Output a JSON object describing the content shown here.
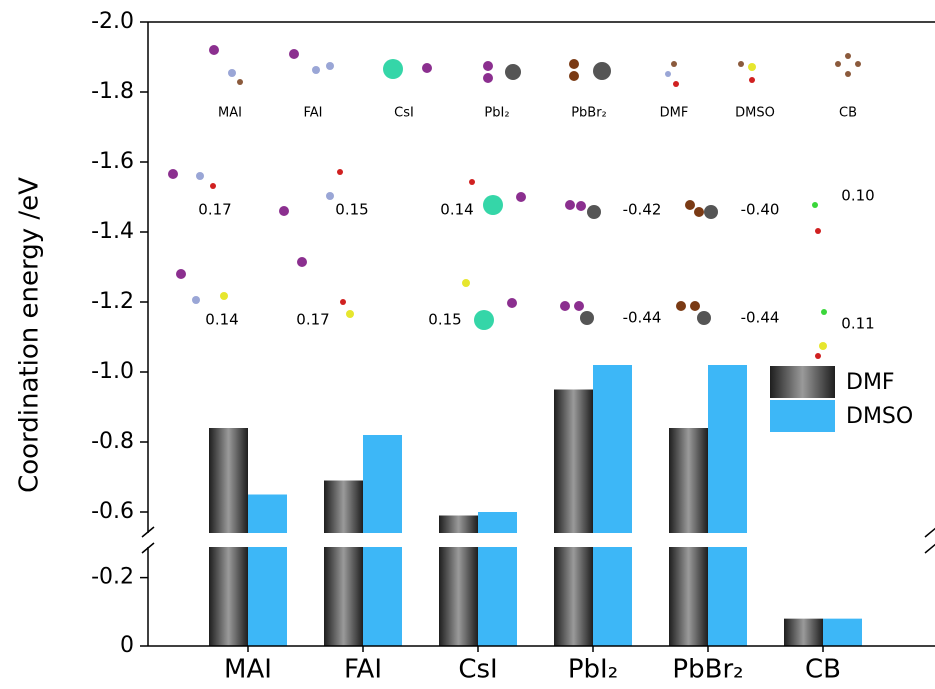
{
  "chart_data": {
    "type": "bar",
    "y_label": "Coordination energy /eV",
    "categories": [
      "MAI",
      "FAI",
      "CsI",
      "PbI₂",
      "PbBr₂",
      "CB"
    ],
    "series": [
      {
        "name": "DMF",
        "color": "#3a3a3a",
        "values": [
          -0.84,
          -0.69,
          -0.59,
          -0.95,
          -0.84,
          -0.08
        ]
      },
      {
        "name": "DMSO",
        "color": "#3db7f7",
        "values": [
          -0.65,
          -0.82,
          -0.6,
          -1.02,
          -1.02,
          -0.08
        ]
      }
    ],
    "ylim": [
      0,
      -2.0
    ],
    "y_break": [
      -0.31,
      -0.52
    ],
    "yticks": [
      0,
      -0.2,
      -0.6,
      -0.8,
      {
        "value": -1.0,
        "label": "-1.0"
      },
      -1.2,
      -1.4,
      -1.6,
      -1.8,
      {
        "value": -2.0,
        "label": "-2.0"
      }
    ],
    "legend": "right",
    "annotations": {
      "molecules": [
        "MAI",
        "FAI",
        "CsI",
        "PbI₂",
        "PbBr₂",
        "DMF",
        "DMSO",
        "CB"
      ],
      "dmf_complexes": [
        "0.17",
        "0.15",
        "0.14",
        "-0.42",
        "-0.40",
        "0.10"
      ],
      "dmso_complexes": [
        "0.14",
        "0.17",
        "0.15",
        "-0.44",
        "-0.44",
        "0.11"
      ]
    }
  }
}
